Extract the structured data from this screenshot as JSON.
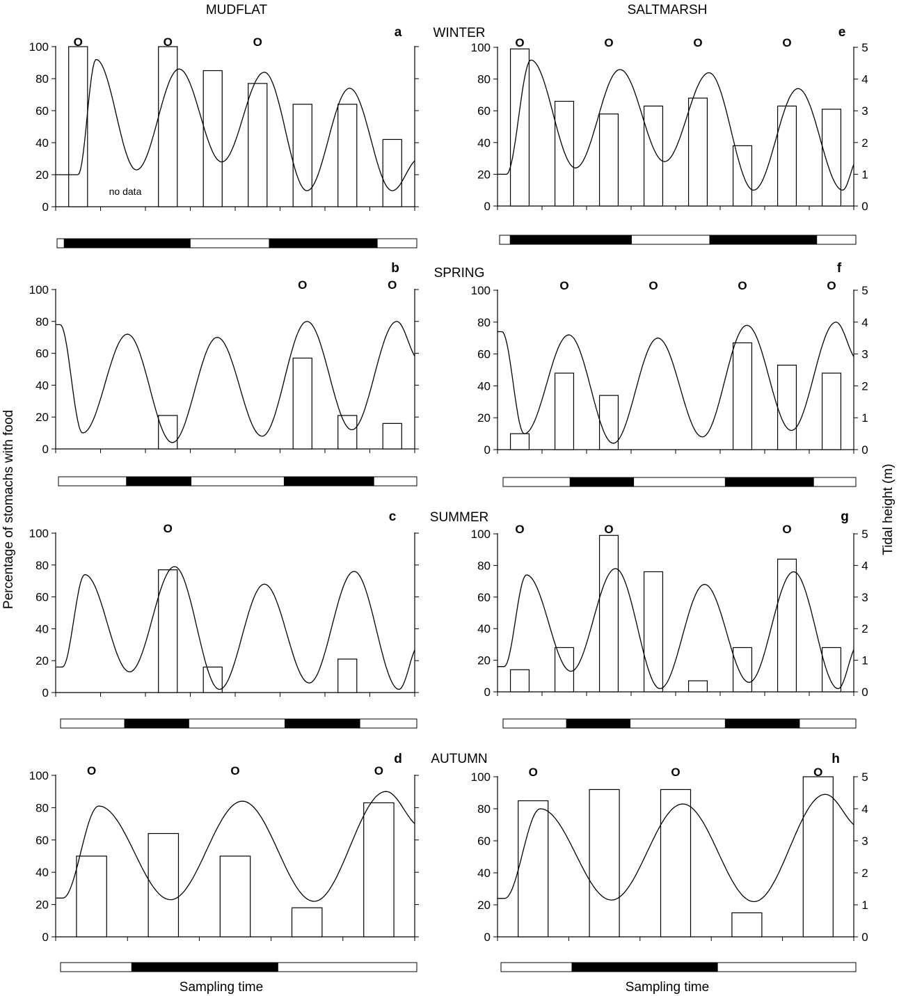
{
  "figure": {
    "column_titles": [
      "MUDFLAT",
      "SALTMARSH"
    ],
    "season_titles": [
      "WINTER",
      "SPRING",
      "SUMMER",
      "AUTUMN"
    ],
    "ylabel_left": "Percentage of stomachs with food",
    "ylabel_right": "Tidal height (m)",
    "xlabel": "Sampling time",
    "y_ticks_left": [
      "0",
      "20",
      "40",
      "60",
      "80",
      "100"
    ],
    "y_ticks_right": [
      "0",
      "1",
      "2",
      "3",
      "4",
      "5"
    ],
    "annotation_marker": "O",
    "no_data_text": "no data"
  },
  "chart_data": [
    {
      "panel": "a",
      "type": "bar",
      "ylim": [
        0,
        100
      ],
      "y2lim": [
        0,
        5
      ],
      "values": [
        100,
        null,
        100,
        85,
        77,
        64,
        64,
        42
      ],
      "markers": [
        0,
        2,
        4
      ],
      "no_data_index": 1,
      "tide_extrema": [
        [
          0,
          1.0
        ],
        [
          0.4,
          4.6
        ],
        [
          1.3,
          1.15
        ],
        [
          2.25,
          4.3
        ],
        [
          3.2,
          1.4
        ],
        [
          4.15,
          4.2
        ],
        [
          5.1,
          0.5
        ],
        [
          6.05,
          3.7
        ],
        [
          7.0,
          0.5
        ],
        [
          7.6,
          1.5
        ]
      ],
      "daynight": [
        [
          "d",
          0,
          0.02
        ],
        [
          "n",
          0.02,
          0.37
        ],
        [
          "d",
          0.37,
          0.59
        ],
        [
          "n",
          0.59,
          0.89
        ],
        [
          "d",
          0.89,
          1
        ]
      ]
    },
    {
      "panel": "e",
      "type": "bar",
      "ylim": [
        0,
        100
      ],
      "y2lim": [
        0,
        5
      ],
      "values": [
        99,
        66,
        58,
        63,
        68,
        38,
        63,
        61
      ],
      "markers": [
        0,
        2,
        4,
        6
      ],
      "tide_extrema": [
        [
          -0.3,
          1.0
        ],
        [
          0.25,
          4.6
        ],
        [
          1.25,
          1.2
        ],
        [
          2.25,
          4.3
        ],
        [
          3.25,
          1.4
        ],
        [
          4.25,
          4.2
        ],
        [
          5.25,
          0.5
        ],
        [
          6.25,
          3.7
        ],
        [
          7.25,
          0.5
        ],
        [
          7.6,
          1.5
        ]
      ],
      "daynight": [
        [
          "d",
          0,
          0.03
        ],
        [
          "n",
          0.03,
          0.37
        ],
        [
          "d",
          0.37,
          0.59
        ],
        [
          "n",
          0.59,
          0.89
        ],
        [
          "d",
          0.89,
          1
        ]
      ]
    },
    {
      "panel": "b",
      "type": "bar",
      "ylim": [
        0,
        100
      ],
      "y2lim": [
        0,
        5
      ],
      "values": [
        null,
        null,
        21,
        null,
        null,
        57,
        21,
        16
      ],
      "markers": [
        5,
        7
      ],
      "tide_extrema": [
        [
          -0.4,
          3.9
        ],
        [
          0.1,
          0.5
        ],
        [
          1.1,
          3.6
        ],
        [
          2.1,
          0.2
        ],
        [
          3.1,
          3.5
        ],
        [
          4.1,
          0.4
        ],
        [
          5.1,
          4.0
        ],
        [
          6.1,
          0.6
        ],
        [
          7.1,
          4.0
        ],
        [
          7.6,
          2.8
        ]
      ],
      "daynight": [
        [
          "d",
          0,
          0.19
        ],
        [
          "n",
          0.19,
          0.37
        ],
        [
          "d",
          0.37,
          0.63
        ],
        [
          "n",
          0.63,
          0.88
        ],
        [
          "d",
          0.88,
          1
        ]
      ]
    },
    {
      "panel": "f",
      "type": "bar",
      "ylim": [
        0,
        100
      ],
      "y2lim": [
        0,
        5
      ],
      "values": [
        10,
        48,
        34,
        null,
        null,
        67,
        53,
        48
      ],
      "markers": [
        1,
        3,
        5,
        7
      ],
      "tide_extrema": [
        [
          -0.4,
          3.7
        ],
        [
          0.1,
          0.5
        ],
        [
          1.1,
          3.6
        ],
        [
          2.1,
          0.2
        ],
        [
          3.1,
          3.5
        ],
        [
          4.1,
          0.4
        ],
        [
          5.1,
          3.9
        ],
        [
          6.1,
          0.6
        ],
        [
          7.1,
          4.0
        ],
        [
          7.6,
          2.8
        ]
      ],
      "daynight": [
        [
          "d",
          0,
          0.19
        ],
        [
          "n",
          0.19,
          0.37
        ],
        [
          "d",
          0.37,
          0.63
        ],
        [
          "n",
          0.63,
          0.88
        ],
        [
          "d",
          0.88,
          1
        ]
      ]
    },
    {
      "panel": "c",
      "type": "bar",
      "ylim": [
        0,
        100
      ],
      "y2lim": [
        0,
        5
      ],
      "values": [
        null,
        null,
        77,
        16,
        null,
        null,
        21,
        null
      ],
      "markers": [
        2
      ],
      "tide_extrema": [
        [
          -0.35,
          0.8
        ],
        [
          0.15,
          3.7
        ],
        [
          1.15,
          0.65
        ],
        [
          2.15,
          3.95
        ],
        [
          3.15,
          0.1
        ],
        [
          4.15,
          3.4
        ],
        [
          5.15,
          0.3
        ],
        [
          6.15,
          3.8
        ],
        [
          7.15,
          0.1
        ],
        [
          7.6,
          1.5
        ]
      ],
      "daynight": [
        [
          "d",
          0,
          0.18
        ],
        [
          "n",
          0.18,
          0.36
        ],
        [
          "d",
          0.36,
          0.63
        ],
        [
          "n",
          0.63,
          0.84
        ],
        [
          "d",
          0.84,
          1
        ]
      ]
    },
    {
      "panel": "g",
      "type": "bar",
      "ylim": [
        0,
        100
      ],
      "y2lim": [
        0,
        5
      ],
      "values": [
        14,
        28,
        99,
        76,
        7,
        28,
        84,
        28
      ],
      "markers": [
        0,
        2,
        6
      ],
      "tide_extrema": [
        [
          -0.35,
          0.8
        ],
        [
          0.15,
          3.7
        ],
        [
          1.15,
          0.65
        ],
        [
          2.15,
          3.9
        ],
        [
          3.15,
          0.1
        ],
        [
          4.15,
          3.4
        ],
        [
          5.15,
          0.3
        ],
        [
          6.15,
          3.8
        ],
        [
          7.15,
          0.1
        ],
        [
          7.6,
          1.5
        ]
      ],
      "daynight": [
        [
          "d",
          0,
          0.18
        ],
        [
          "n",
          0.18,
          0.36
        ],
        [
          "d",
          0.36,
          0.63
        ],
        [
          "n",
          0.63,
          0.84
        ],
        [
          "d",
          0.84,
          1
        ]
      ]
    },
    {
      "panel": "d",
      "type": "bar",
      "ylim": [
        0,
        100
      ],
      "y2lim": [
        0,
        5
      ],
      "values": [
        50,
        64,
        50,
        18,
        83
      ],
      "markers": [
        0,
        2,
        4
      ],
      "tide_extrema": [
        [
          -0.4,
          1.2
        ],
        [
          0.1,
          4.05
        ],
        [
          1.1,
          1.15
        ],
        [
          2.1,
          4.2
        ],
        [
          3.1,
          1.1
        ],
        [
          4.1,
          4.5
        ],
        [
          4.6,
          3.4
        ]
      ],
      "daynight": [
        [
          "d",
          0,
          0.2
        ],
        [
          "n",
          0.2,
          0.61
        ],
        [
          "d",
          0.61,
          1
        ]
      ]
    },
    {
      "panel": "h",
      "type": "bar",
      "ylim": [
        0,
        100
      ],
      "y2lim": [
        0,
        5
      ],
      "values": [
        85,
        92,
        92,
        15,
        100
      ],
      "markers": [
        0,
        2,
        4
      ],
      "tide_extrema": [
        [
          -0.4,
          1.2
        ],
        [
          0.1,
          4.0
        ],
        [
          1.1,
          1.15
        ],
        [
          2.1,
          4.15
        ],
        [
          3.1,
          1.1
        ],
        [
          4.1,
          4.45
        ],
        [
          4.6,
          3.4
        ]
      ],
      "daynight": [
        [
          "d",
          0,
          0.2
        ],
        [
          "n",
          0.2,
          0.61
        ],
        [
          "d",
          0.61,
          1
        ]
      ]
    }
  ]
}
